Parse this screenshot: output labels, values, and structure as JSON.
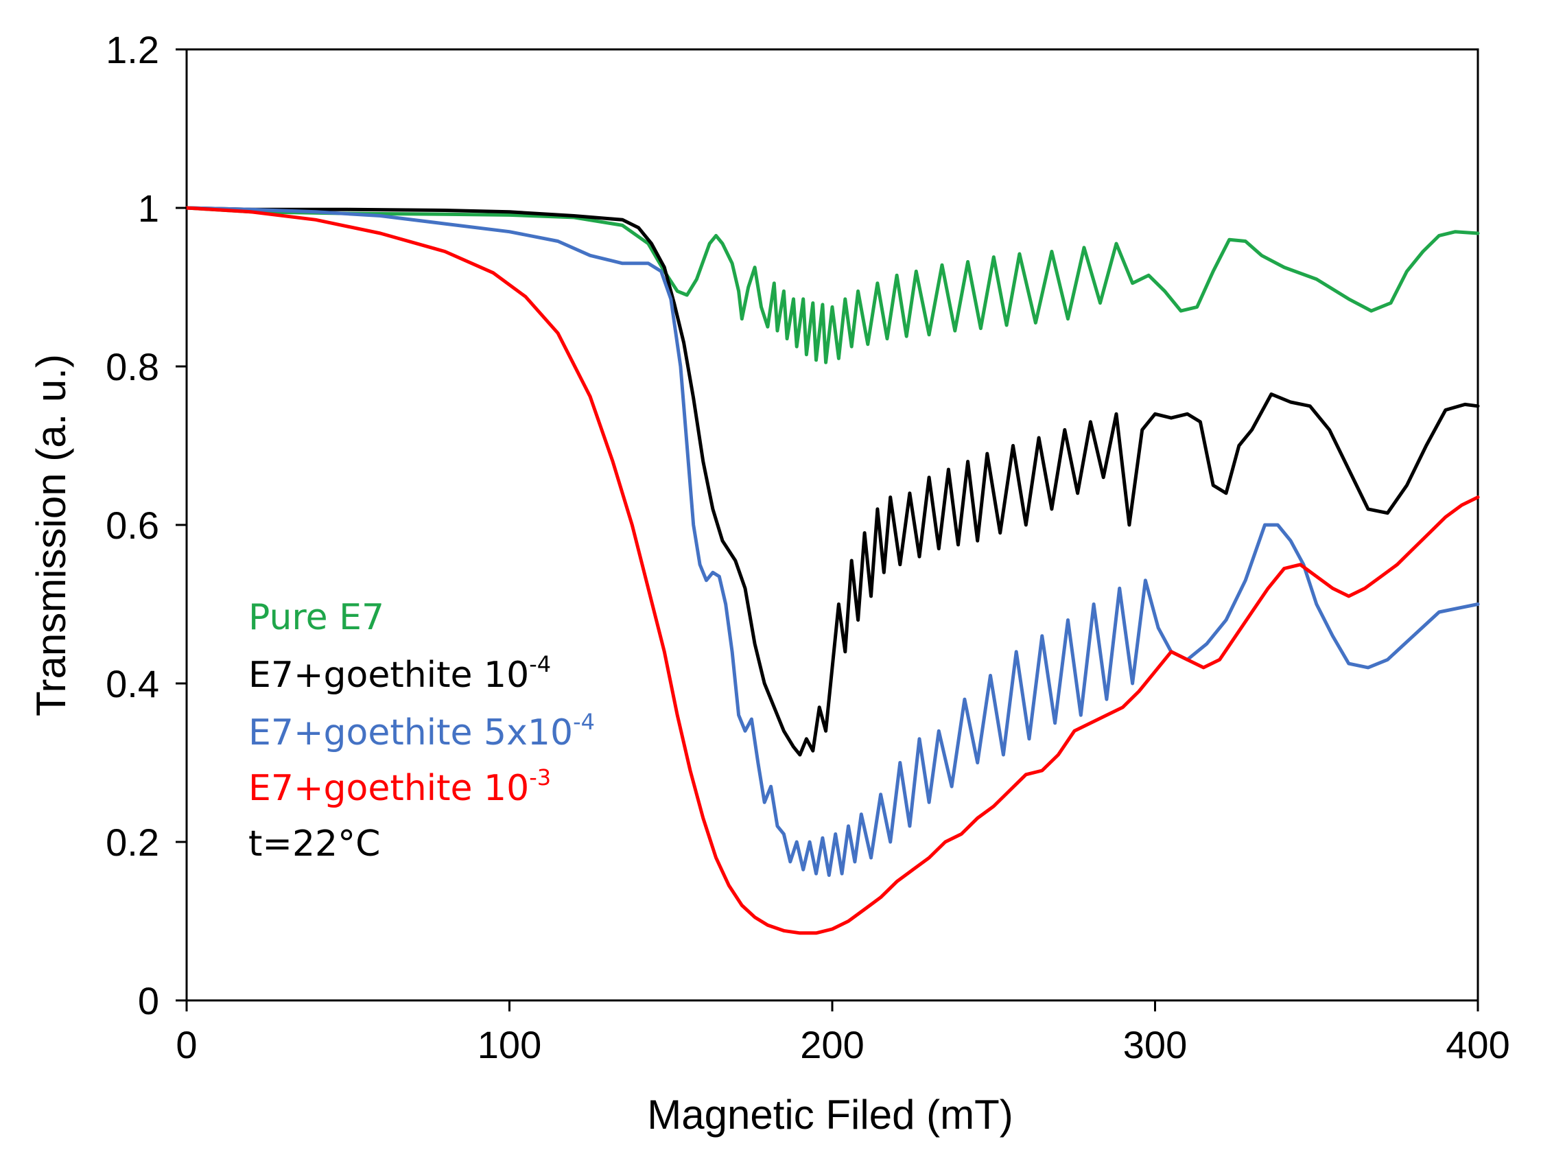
{
  "chart_data": {
    "type": "line",
    "xlabel": "Magnetic Filed (mT)",
    "ylabel": "Transmission (a. u.)",
    "xlim": [
      0,
      400
    ],
    "ylim": [
      0,
      1.2
    ],
    "x_ticks": [
      "0",
      "100",
      "200",
      "300",
      "400"
    ],
    "y_ticks": [
      "0",
      "0.2",
      "0.4",
      "0.6",
      "0.8",
      "1",
      "1.2"
    ],
    "grid": false,
    "legend_placement": "left",
    "legend": [
      {
        "label": "Pure E7",
        "sup": "",
        "color": "#1fa64a"
      },
      {
        "label": "E7+goethite 10",
        "sup": "-4",
        "color": "#000000"
      },
      {
        "label": "E7+goethite 5x10",
        "sup": "-4",
        "color": "#4472c4"
      },
      {
        "label": "E7+goethite 10",
        "sup": "-3",
        "color": "#ff0000"
      }
    ],
    "annotation": "t=22°C",
    "series": [
      {
        "name": "Pure E7",
        "color": "#1fa64a",
        "points": [
          [
            0,
            1.0
          ],
          [
            20,
            0.995
          ],
          [
            50,
            0.993
          ],
          [
            80,
            0.992
          ],
          [
            100,
            0.991
          ],
          [
            120,
            0.988
          ],
          [
            135,
            0.978
          ],
          [
            143,
            0.955
          ],
          [
            148,
            0.92
          ],
          [
            152,
            0.895
          ],
          [
            155,
            0.89
          ],
          [
            158,
            0.91
          ],
          [
            162,
            0.955
          ],
          [
            164,
            0.965
          ],
          [
            166,
            0.955
          ],
          [
            169,
            0.93
          ],
          [
            171,
            0.895
          ],
          [
            172,
            0.86
          ],
          [
            174,
            0.9
          ],
          [
            176,
            0.925
          ],
          [
            178,
            0.875
          ],
          [
            180,
            0.85
          ],
          [
            182,
            0.905
          ],
          [
            183,
            0.845
          ],
          [
            185,
            0.895
          ],
          [
            186,
            0.835
          ],
          [
            188,
            0.885
          ],
          [
            189,
            0.825
          ],
          [
            191,
            0.885
          ],
          [
            192,
            0.815
          ],
          [
            194,
            0.88
          ],
          [
            195,
            0.808
          ],
          [
            197,
            0.878
          ],
          [
            198,
            0.805
          ],
          [
            200,
            0.875
          ],
          [
            202,
            0.81
          ],
          [
            204,
            0.885
          ],
          [
            206,
            0.825
          ],
          [
            208,
            0.895
          ],
          [
            211,
            0.828
          ],
          [
            214,
            0.905
          ],
          [
            217,
            0.835
          ],
          [
            220,
            0.915
          ],
          [
            223,
            0.838
          ],
          [
            226,
            0.92
          ],
          [
            230,
            0.84
          ],
          [
            234,
            0.928
          ],
          [
            238,
            0.845
          ],
          [
            242,
            0.932
          ],
          [
            246,
            0.848
          ],
          [
            250,
            0.938
          ],
          [
            254,
            0.852
          ],
          [
            258,
            0.942
          ],
          [
            263,
            0.855
          ],
          [
            268,
            0.945
          ],
          [
            273,
            0.86
          ],
          [
            278,
            0.95
          ],
          [
            283,
            0.88
          ],
          [
            288,
            0.955
          ],
          [
            293,
            0.905
          ],
          [
            298,
            0.915
          ],
          [
            303,
            0.895
          ],
          [
            308,
            0.87
          ],
          [
            313,
            0.875
          ],
          [
            318,
            0.92
          ],
          [
            323,
            0.96
          ],
          [
            328,
            0.958
          ],
          [
            333,
            0.94
          ],
          [
            340,
            0.925
          ],
          [
            350,
            0.91
          ],
          [
            360,
            0.885
          ],
          [
            367,
            0.87
          ],
          [
            373,
            0.88
          ],
          [
            378,
            0.92
          ],
          [
            383,
            0.945
          ],
          [
            388,
            0.965
          ],
          [
            393,
            0.97
          ],
          [
            400,
            0.968
          ]
        ]
      },
      {
        "name": "E7+goethite 10-4",
        "color": "#000000",
        "points": [
          [
            0,
            1.0
          ],
          [
            20,
            0.998
          ],
          [
            50,
            0.998
          ],
          [
            80,
            0.997
          ],
          [
            100,
            0.995
          ],
          [
            120,
            0.99
          ],
          [
            135,
            0.985
          ],
          [
            140,
            0.975
          ],
          [
            144,
            0.955
          ],
          [
            148,
            0.925
          ],
          [
            151,
            0.88
          ],
          [
            154,
            0.83
          ],
          [
            157,
            0.76
          ],
          [
            160,
            0.68
          ],
          [
            163,
            0.62
          ],
          [
            166,
            0.58
          ],
          [
            170,
            0.555
          ],
          [
            173,
            0.52
          ],
          [
            176,
            0.45
          ],
          [
            179,
            0.4
          ],
          [
            182,
            0.37
          ],
          [
            185,
            0.34
          ],
          [
            188,
            0.32
          ],
          [
            190,
            0.31
          ],
          [
            192,
            0.33
          ],
          [
            194,
            0.315
          ],
          [
            196,
            0.37
          ],
          [
            198,
            0.34
          ],
          [
            200,
            0.42
          ],
          [
            202,
            0.5
          ],
          [
            204,
            0.44
          ],
          [
            206,
            0.555
          ],
          [
            208,
            0.48
          ],
          [
            210,
            0.59
          ],
          [
            212,
            0.51
          ],
          [
            214,
            0.62
          ],
          [
            216,
            0.54
          ],
          [
            218,
            0.635
          ],
          [
            221,
            0.55
          ],
          [
            224,
            0.64
          ],
          [
            227,
            0.56
          ],
          [
            230,
            0.66
          ],
          [
            233,
            0.57
          ],
          [
            236,
            0.67
          ],
          [
            239,
            0.575
          ],
          [
            242,
            0.68
          ],
          [
            245,
            0.58
          ],
          [
            248,
            0.69
          ],
          [
            252,
            0.59
          ],
          [
            256,
            0.7
          ],
          [
            260,
            0.6
          ],
          [
            264,
            0.71
          ],
          [
            268,
            0.62
          ],
          [
            272,
            0.72
          ],
          [
            276,
            0.64
          ],
          [
            280,
            0.73
          ],
          [
            284,
            0.66
          ],
          [
            288,
            0.74
          ],
          [
            292,
            0.6
          ],
          [
            296,
            0.72
          ],
          [
            300,
            0.74
          ],
          [
            305,
            0.735
          ],
          [
            310,
            0.74
          ],
          [
            314,
            0.73
          ],
          [
            318,
            0.65
          ],
          [
            322,
            0.64
          ],
          [
            326,
            0.7
          ],
          [
            330,
            0.72
          ],
          [
            336,
            0.765
          ],
          [
            342,
            0.755
          ],
          [
            348,
            0.75
          ],
          [
            354,
            0.72
          ],
          [
            360,
            0.67
          ],
          [
            366,
            0.62
          ],
          [
            372,
            0.615
          ],
          [
            378,
            0.65
          ],
          [
            384,
            0.7
          ],
          [
            390,
            0.745
          ],
          [
            396,
            0.752
          ],
          [
            400,
            0.75
          ]
        ]
      },
      {
        "name": "E7+goethite 5x10-4",
        "color": "#4472c4",
        "points": [
          [
            0,
            1.0
          ],
          [
            20,
            0.998
          ],
          [
            40,
            0.995
          ],
          [
            60,
            0.99
          ],
          [
            80,
            0.98
          ],
          [
            100,
            0.97
          ],
          [
            115,
            0.958
          ],
          [
            125,
            0.94
          ],
          [
            135,
            0.93
          ],
          [
            143,
            0.93
          ],
          [
            147,
            0.92
          ],
          [
            150,
            0.885
          ],
          [
            153,
            0.8
          ],
          [
            155,
            0.7
          ],
          [
            157,
            0.6
          ],
          [
            159,
            0.55
          ],
          [
            161,
            0.53
          ],
          [
            163,
            0.54
          ],
          [
            165,
            0.535
          ],
          [
            167,
            0.5
          ],
          [
            169,
            0.44
          ],
          [
            171,
            0.36
          ],
          [
            173,
            0.34
          ],
          [
            175,
            0.355
          ],
          [
            177,
            0.3
          ],
          [
            179,
            0.25
          ],
          [
            181,
            0.27
          ],
          [
            183,
            0.22
          ],
          [
            185,
            0.21
          ],
          [
            187,
            0.175
          ],
          [
            189,
            0.2
          ],
          [
            191,
            0.165
          ],
          [
            193,
            0.2
          ],
          [
            195,
            0.16
          ],
          [
            197,
            0.205
          ],
          [
            199,
            0.158
          ],
          [
            201,
            0.21
          ],
          [
            203,
            0.16
          ],
          [
            205,
            0.22
          ],
          [
            207,
            0.175
          ],
          [
            209,
            0.235
          ],
          [
            212,
            0.18
          ],
          [
            215,
            0.26
          ],
          [
            218,
            0.2
          ],
          [
            221,
            0.3
          ],
          [
            224,
            0.22
          ],
          [
            227,
            0.33
          ],
          [
            230,
            0.25
          ],
          [
            233,
            0.34
          ],
          [
            237,
            0.27
          ],
          [
            241,
            0.38
          ],
          [
            245,
            0.3
          ],
          [
            249,
            0.41
          ],
          [
            253,
            0.31
          ],
          [
            257,
            0.44
          ],
          [
            261,
            0.33
          ],
          [
            265,
            0.46
          ],
          [
            269,
            0.35
          ],
          [
            273,
            0.48
          ],
          [
            277,
            0.36
          ],
          [
            281,
            0.5
          ],
          [
            285,
            0.38
          ],
          [
            289,
            0.52
          ],
          [
            293,
            0.4
          ],
          [
            297,
            0.53
          ],
          [
            301,
            0.47
          ],
          [
            305,
            0.44
          ],
          [
            310,
            0.43
          ],
          [
            316,
            0.45
          ],
          [
            322,
            0.48
          ],
          [
            328,
            0.53
          ],
          [
            334,
            0.6
          ],
          [
            338,
            0.6
          ],
          [
            342,
            0.58
          ],
          [
            346,
            0.55
          ],
          [
            350,
            0.5
          ],
          [
            355,
            0.46
          ],
          [
            360,
            0.425
          ],
          [
            366,
            0.42
          ],
          [
            372,
            0.43
          ],
          [
            380,
            0.46
          ],
          [
            388,
            0.49
          ],
          [
            400,
            0.5
          ]
        ]
      },
      {
        "name": "E7+goethite 10-3",
        "color": "#ff0000",
        "points": [
          [
            0,
            1.0
          ],
          [
            20,
            0.995
          ],
          [
            40,
            0.985
          ],
          [
            60,
            0.968
          ],
          [
            80,
            0.945
          ],
          [
            95,
            0.918
          ],
          [
            105,
            0.888
          ],
          [
            115,
            0.842
          ],
          [
            125,
            0.762
          ],
          [
            132,
            0.68
          ],
          [
            138,
            0.6
          ],
          [
            143,
            0.52
          ],
          [
            148,
            0.44
          ],
          [
            152,
            0.36
          ],
          [
            156,
            0.29
          ],
          [
            160,
            0.23
          ],
          [
            164,
            0.18
          ],
          [
            168,
            0.145
          ],
          [
            172,
            0.12
          ],
          [
            176,
            0.105
          ],
          [
            180,
            0.095
          ],
          [
            185,
            0.088
          ],
          [
            190,
            0.085
          ],
          [
            195,
            0.085
          ],
          [
            200,
            0.09
          ],
          [
            205,
            0.1
          ],
          [
            210,
            0.115
          ],
          [
            215,
            0.13
          ],
          [
            220,
            0.15
          ],
          [
            225,
            0.165
          ],
          [
            230,
            0.18
          ],
          [
            235,
            0.2
          ],
          [
            240,
            0.21
          ],
          [
            245,
            0.23
          ],
          [
            250,
            0.245
          ],
          [
            255,
            0.265
          ],
          [
            260,
            0.285
          ],
          [
            265,
            0.29
          ],
          [
            270,
            0.31
          ],
          [
            275,
            0.34
          ],
          [
            280,
            0.35
          ],
          [
            285,
            0.36
          ],
          [
            290,
            0.37
          ],
          [
            295,
            0.39
          ],
          [
            300,
            0.415
          ],
          [
            305,
            0.44
          ],
          [
            310,
            0.43
          ],
          [
            315,
            0.42
          ],
          [
            320,
            0.43
          ],
          [
            325,
            0.46
          ],
          [
            330,
            0.49
          ],
          [
            335,
            0.52
          ],
          [
            340,
            0.545
          ],
          [
            345,
            0.55
          ],
          [
            350,
            0.535
          ],
          [
            355,
            0.52
          ],
          [
            360,
            0.51
          ],
          [
            365,
            0.52
          ],
          [
            370,
            0.535
          ],
          [
            375,
            0.55
          ],
          [
            380,
            0.57
          ],
          [
            385,
            0.59
          ],
          [
            390,
            0.61
          ],
          [
            395,
            0.625
          ],
          [
            400,
            0.635
          ]
        ]
      }
    ]
  }
}
